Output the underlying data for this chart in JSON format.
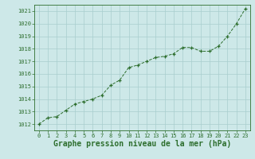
{
  "x": [
    0,
    1,
    2,
    3,
    4,
    5,
    6,
    7,
    8,
    9,
    10,
    11,
    12,
    13,
    14,
    15,
    16,
    17,
    18,
    19,
    20,
    21,
    22,
    23
  ],
  "y": [
    1012.0,
    1012.5,
    1012.6,
    1013.1,
    1013.6,
    1013.8,
    1014.0,
    1014.3,
    1015.1,
    1015.5,
    1016.5,
    1016.7,
    1017.0,
    1017.3,
    1017.4,
    1017.6,
    1018.1,
    1018.1,
    1017.8,
    1017.8,
    1018.2,
    1019.0,
    1020.0,
    1021.2
  ],
  "line_color": "#2d6e2d",
  "marker_color": "#2d6e2d",
  "bg_color": "#cde8e8",
  "grid_color": "#a8cece",
  "ylim": [
    1011.5,
    1021.5
  ],
  "yticks": [
    1012,
    1013,
    1014,
    1015,
    1016,
    1017,
    1018,
    1019,
    1020,
    1021
  ],
  "xlim": [
    -0.5,
    23.5
  ],
  "xticks": [
    0,
    1,
    2,
    3,
    4,
    5,
    6,
    7,
    8,
    9,
    10,
    11,
    12,
    13,
    14,
    15,
    16,
    17,
    18,
    19,
    20,
    21,
    22,
    23
  ],
  "xlabel": "Graphe pression niveau de la mer (hPa)",
  "xlabel_color": "#2d6e2d",
  "tick_color": "#2d6e2d",
  "axis_color": "#2d6e2d",
  "tick_fontsize": 5.0,
  "xlabel_fontsize": 7.0
}
